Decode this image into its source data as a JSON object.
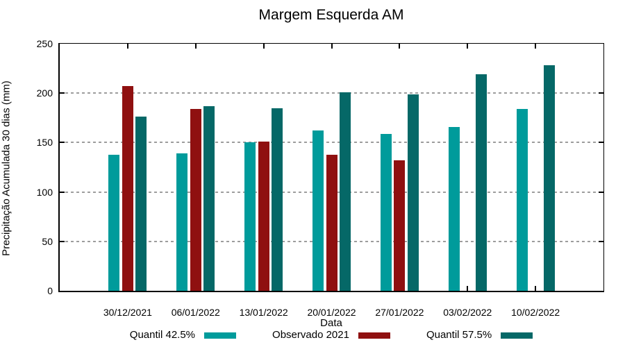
{
  "title": "Margem Esquerda AM",
  "chart_data": {
    "type": "bar",
    "title": "Margem Esquerda AM",
    "xlabel": "Data",
    "ylabel": "Precipitação Acumulada 30 dias (mm)",
    "categories": [
      "30/12/2021",
      "06/01/2022",
      "13/01/2022",
      "20/01/2022",
      "27/01/2022",
      "03/02/2022",
      "10/02/2022"
    ],
    "series": [
      {
        "name": "Quantil 42.5%",
        "color": "#009B9B",
        "values": [
          138,
          139,
          150,
          162,
          159,
          166,
          184
        ]
      },
      {
        "name": "Observado 2021",
        "color": "#8F1010",
        "values": [
          207,
          184,
          151,
          138,
          132,
          null,
          null
        ]
      },
      {
        "name": "Quantil 57.5%",
        "color": "#056867",
        "values": [
          176,
          187,
          185,
          201,
          199,
          219,
          228
        ]
      }
    ],
    "ylim": [
      0,
      250
    ],
    "yticks": [
      0,
      50,
      100,
      150,
      200,
      250
    ],
    "grid": true,
    "legend_position": "bottom",
    "colors": {
      "axis": "#000000",
      "gridline": "#9d9d9d",
      "background": "#ffffff"
    }
  }
}
